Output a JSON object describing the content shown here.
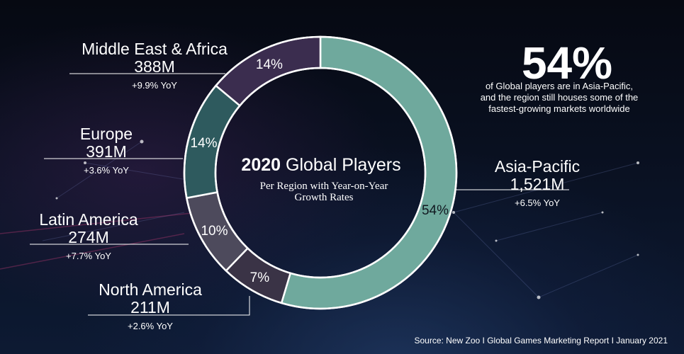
{
  "title": {
    "bold": "2020",
    "rest": " Global Players",
    "subtitle_line1": "Per Region with Year-on-Year",
    "subtitle_line2": "Growth Rates"
  },
  "callout": {
    "big": "54%",
    "line1": "of Global players are in Asia-Pacific,",
    "line2": "and the region still houses some of the",
    "line3": "fastest-growing markets worldwide"
  },
  "source": "Source: New Zoo  I  Global Games Marketing Report  I  January 2021",
  "colors": {
    "asia_pacific": "#6fa99d",
    "north_america": "#3a3346",
    "latin_america": "#4d4a5c",
    "europe": "#2e5a5e",
    "middle_east_africa": "#3b2d4f",
    "ring_outline": "#ffffff"
  },
  "chart_data": {
    "type": "pie",
    "title": "2020 Global Players",
    "subtitle": "Per Region with Year-on-Year Growth Rates",
    "series": [
      {
        "region": "Asia-Pacific",
        "players": "1,521M",
        "players_m": 1521,
        "percent": 54,
        "percent_label": "54%",
        "yoy": "+6.5% YoY",
        "color": "#6fa99d"
      },
      {
        "region": "North America",
        "players": "211M",
        "players_m": 211,
        "percent": 7,
        "percent_label": "7%",
        "yoy": "+2.6% YoY",
        "color": "#3a3346"
      },
      {
        "region": "Latin America",
        "players": "274M",
        "players_m": 274,
        "percent": 10,
        "percent_label": "10%",
        "yoy": "+7.7% YoY",
        "color": "#4d4a5c"
      },
      {
        "region": "Europe",
        "players": "391M",
        "players_m": 391,
        "percent": 14,
        "percent_label": "14%",
        "yoy": "+3.6% YoY",
        "color": "#2e5a5e"
      },
      {
        "region": "Middle East & Africa",
        "players": "388M",
        "players_m": 388,
        "percent": 14,
        "percent_label": "14%",
        "yoy": "+9.9% YoY",
        "color": "#3b2d4f"
      }
    ]
  }
}
